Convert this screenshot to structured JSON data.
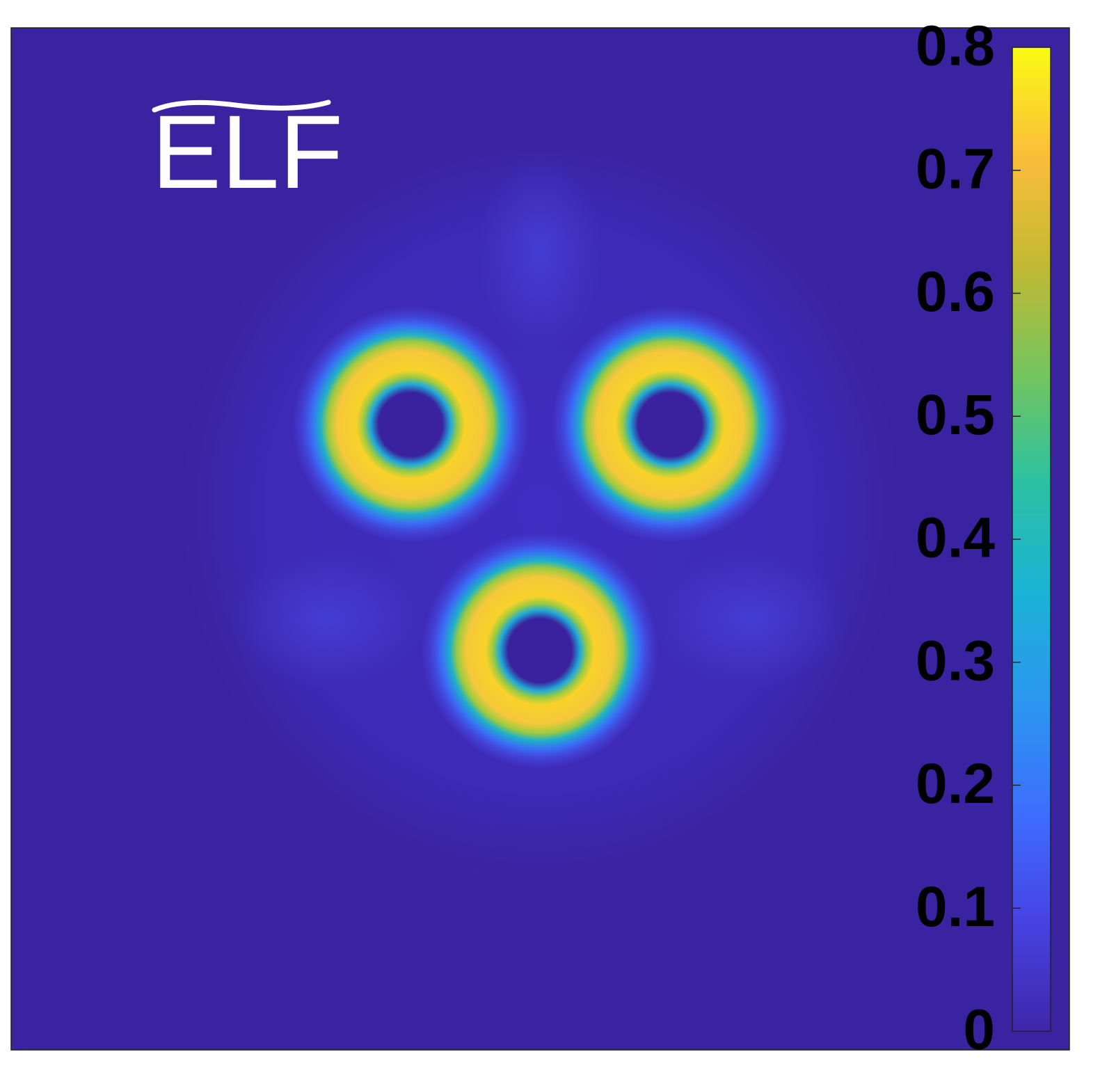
{
  "chart_data": {
    "type": "heatmap",
    "title": "ELF",
    "colormap": [
      "#3e26a8",
      "#4743e3",
      "#3d6efd",
      "#2c96f0",
      "#1bb2d6",
      "#2ac1a4",
      "#73c55e",
      "#c2b933",
      "#fbbd3b",
      "#f9fb15"
    ],
    "clim": [
      0,
      0.8
    ],
    "cticks": [
      0,
      0.1,
      0.2,
      0.3,
      0.4,
      0.5,
      0.6,
      0.7,
      0.8
    ]
  }
}
